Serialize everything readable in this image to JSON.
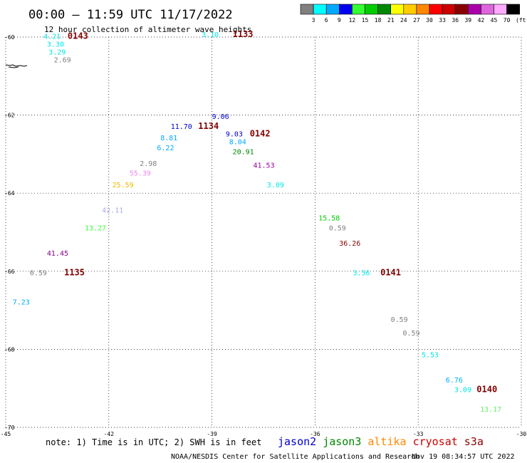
{
  "header": {
    "title": "00:00 – 11:59 UTC 11/17/2022",
    "subtitle": "12 hour collection of altimeter wave heights"
  },
  "colorbar": {
    "colors": [
      "#808080",
      "#00ffff",
      "#00aaff",
      "#0000ee",
      "#33ff33",
      "#00cc00",
      "#008800",
      "#ffff00",
      "#ffcc00",
      "#ff8800",
      "#ff0000",
      "#cc0000",
      "#880000",
      "#aa00aa",
      "#dd66dd",
      "#ffaaff",
      "#000000"
    ],
    "labels": [
      "3",
      "6",
      "9",
      "12",
      "15",
      "18",
      "21",
      "24",
      "27",
      "30",
      "33",
      "36",
      "39",
      "42",
      "45",
      "70"
    ],
    "unit": "(ft)"
  },
  "chart_data": {
    "type": "scatter",
    "title": "00:00 – 11:59 UTC 11/17/2022",
    "subtitle": "12 hour collection of altimeter wave heights",
    "xlim": [
      -45,
      -30
    ],
    "ylim": [
      -70,
      -60
    ],
    "x_ticks": [
      "-45",
      "-42",
      "-39",
      "-36",
      "-33",
      "-30"
    ],
    "y_ticks": [
      "-60",
      "-62",
      "-64",
      "-66",
      "-68",
      "-70"
    ],
    "grid": true,
    "points": [
      {
        "lon": -43.9,
        "lat": -60.05,
        "label": "4.21",
        "color": "#00e8e8"
      },
      {
        "lon": -43.8,
        "lat": -60.25,
        "label": "3.30",
        "color": "#00e8e8"
      },
      {
        "lon": -43.75,
        "lat": -60.45,
        "label": "3.29",
        "color": "#00e8e8"
      },
      {
        "lon": -43.6,
        "lat": -60.65,
        "label": "2.69",
        "color": "#808080"
      },
      {
        "lon": -39.3,
        "lat": -60.0,
        "label": "3.10",
        "color": "#00e8e8"
      },
      {
        "lon": -39.0,
        "lat": -62.1,
        "label": "9.06",
        "color": "#0000cc"
      },
      {
        "lon": -40.2,
        "lat": -62.35,
        "label": "11.70",
        "color": "#0000cc"
      },
      {
        "lon": -38.6,
        "lat": -62.55,
        "label": "9.03",
        "color": "#0000cc"
      },
      {
        "lon": -40.5,
        "lat": -62.65,
        "label": "8.81",
        "color": "#00aaff"
      },
      {
        "lon": -38.5,
        "lat": -62.75,
        "label": "8.04",
        "color": "#00aaff"
      },
      {
        "lon": -40.6,
        "lat": -62.9,
        "label": "6.22",
        "color": "#00aaff"
      },
      {
        "lon": -38.4,
        "lat": -63.0,
        "label": "20.91",
        "color": "#008800"
      },
      {
        "lon": -41.1,
        "lat": -63.3,
        "label": "2.98",
        "color": "#808080"
      },
      {
        "lon": -37.8,
        "lat": -63.35,
        "label": "41.53",
        "color": "#990099"
      },
      {
        "lon": -41.4,
        "lat": -63.55,
        "label": "55.39",
        "color": "#ee88ee"
      },
      {
        "lon": -41.9,
        "lat": -63.85,
        "label": "25.59",
        "color": "#eebb00"
      },
      {
        "lon": -37.4,
        "lat": -63.85,
        "label": "3.09",
        "color": "#00e8e8"
      },
      {
        "lon": -42.2,
        "lat": -64.5,
        "label": "42.11",
        "color": "#aaaaee"
      },
      {
        "lon": -42.7,
        "lat": -64.95,
        "label": "13.27",
        "color": "#33ff33"
      },
      {
        "lon": -35.9,
        "lat": -64.7,
        "label": "15.58",
        "color": "#00cc00"
      },
      {
        "lon": -35.6,
        "lat": -64.95,
        "label": "0.59",
        "color": "#808080"
      },
      {
        "lon": -35.3,
        "lat": -65.35,
        "label": "36.26",
        "color": "#880000"
      },
      {
        "lon": -43.8,
        "lat": -65.6,
        "label": "41.45",
        "color": "#880088"
      },
      {
        "lon": -44.3,
        "lat": -66.1,
        "label": "0.59",
        "color": "#808080"
      },
      {
        "lon": -34.9,
        "lat": -66.1,
        "label": "3.56",
        "color": "#00e8e8"
      },
      {
        "lon": -44.8,
        "lat": -66.85,
        "label": "7.23",
        "color": "#00aaff"
      },
      {
        "lon": -33.8,
        "lat": -67.3,
        "label": "0.59",
        "color": "#808080"
      },
      {
        "lon": -33.45,
        "lat": -67.65,
        "label": "0.59",
        "color": "#808080"
      },
      {
        "lon": -32.9,
        "lat": -68.2,
        "label": "5.53",
        "color": "#00e8e8"
      },
      {
        "lon": -32.2,
        "lat": -68.85,
        "label": "6.76",
        "color": "#00aaff"
      },
      {
        "lon": -31.95,
        "lat": -69.1,
        "label": "3.09",
        "color": "#00e8e8"
      },
      {
        "lon": -31.2,
        "lat": -69.6,
        "label": "13.17",
        "color": "#66ee66"
      }
    ],
    "passes": [
      {
        "lon": -43.2,
        "lat": -60.05,
        "label": "0143"
      },
      {
        "lon": -38.4,
        "lat": -60.0,
        "label": "1133"
      },
      {
        "lon": -39.4,
        "lat": -62.35,
        "label": "1134"
      },
      {
        "lon": -37.9,
        "lat": -62.55,
        "label": "0142"
      },
      {
        "lon": -43.3,
        "lat": -66.1,
        "label": "1135"
      },
      {
        "lon": -34.1,
        "lat": -66.1,
        "label": "0141"
      },
      {
        "lon": -31.3,
        "lat": -69.1,
        "label": "0140"
      }
    ]
  },
  "footer": {
    "note": "note: 1) Time is in UTC; 2) SWH is in feet",
    "satellites": [
      {
        "name": "jason2",
        "color": "#0000cc"
      },
      {
        "name": "jason3",
        "color": "#008800"
      },
      {
        "name": "altika",
        "color": "#ff8800"
      },
      {
        "name": "cryosat",
        "color": "#cc0000"
      },
      {
        "name": "s3a",
        "color": "#880000"
      }
    ],
    "credit": "NOAA/NESDIS Center for Satellite Applications and Research",
    "timestamp": "Nov 19 08:34:57 UTC 2022"
  }
}
